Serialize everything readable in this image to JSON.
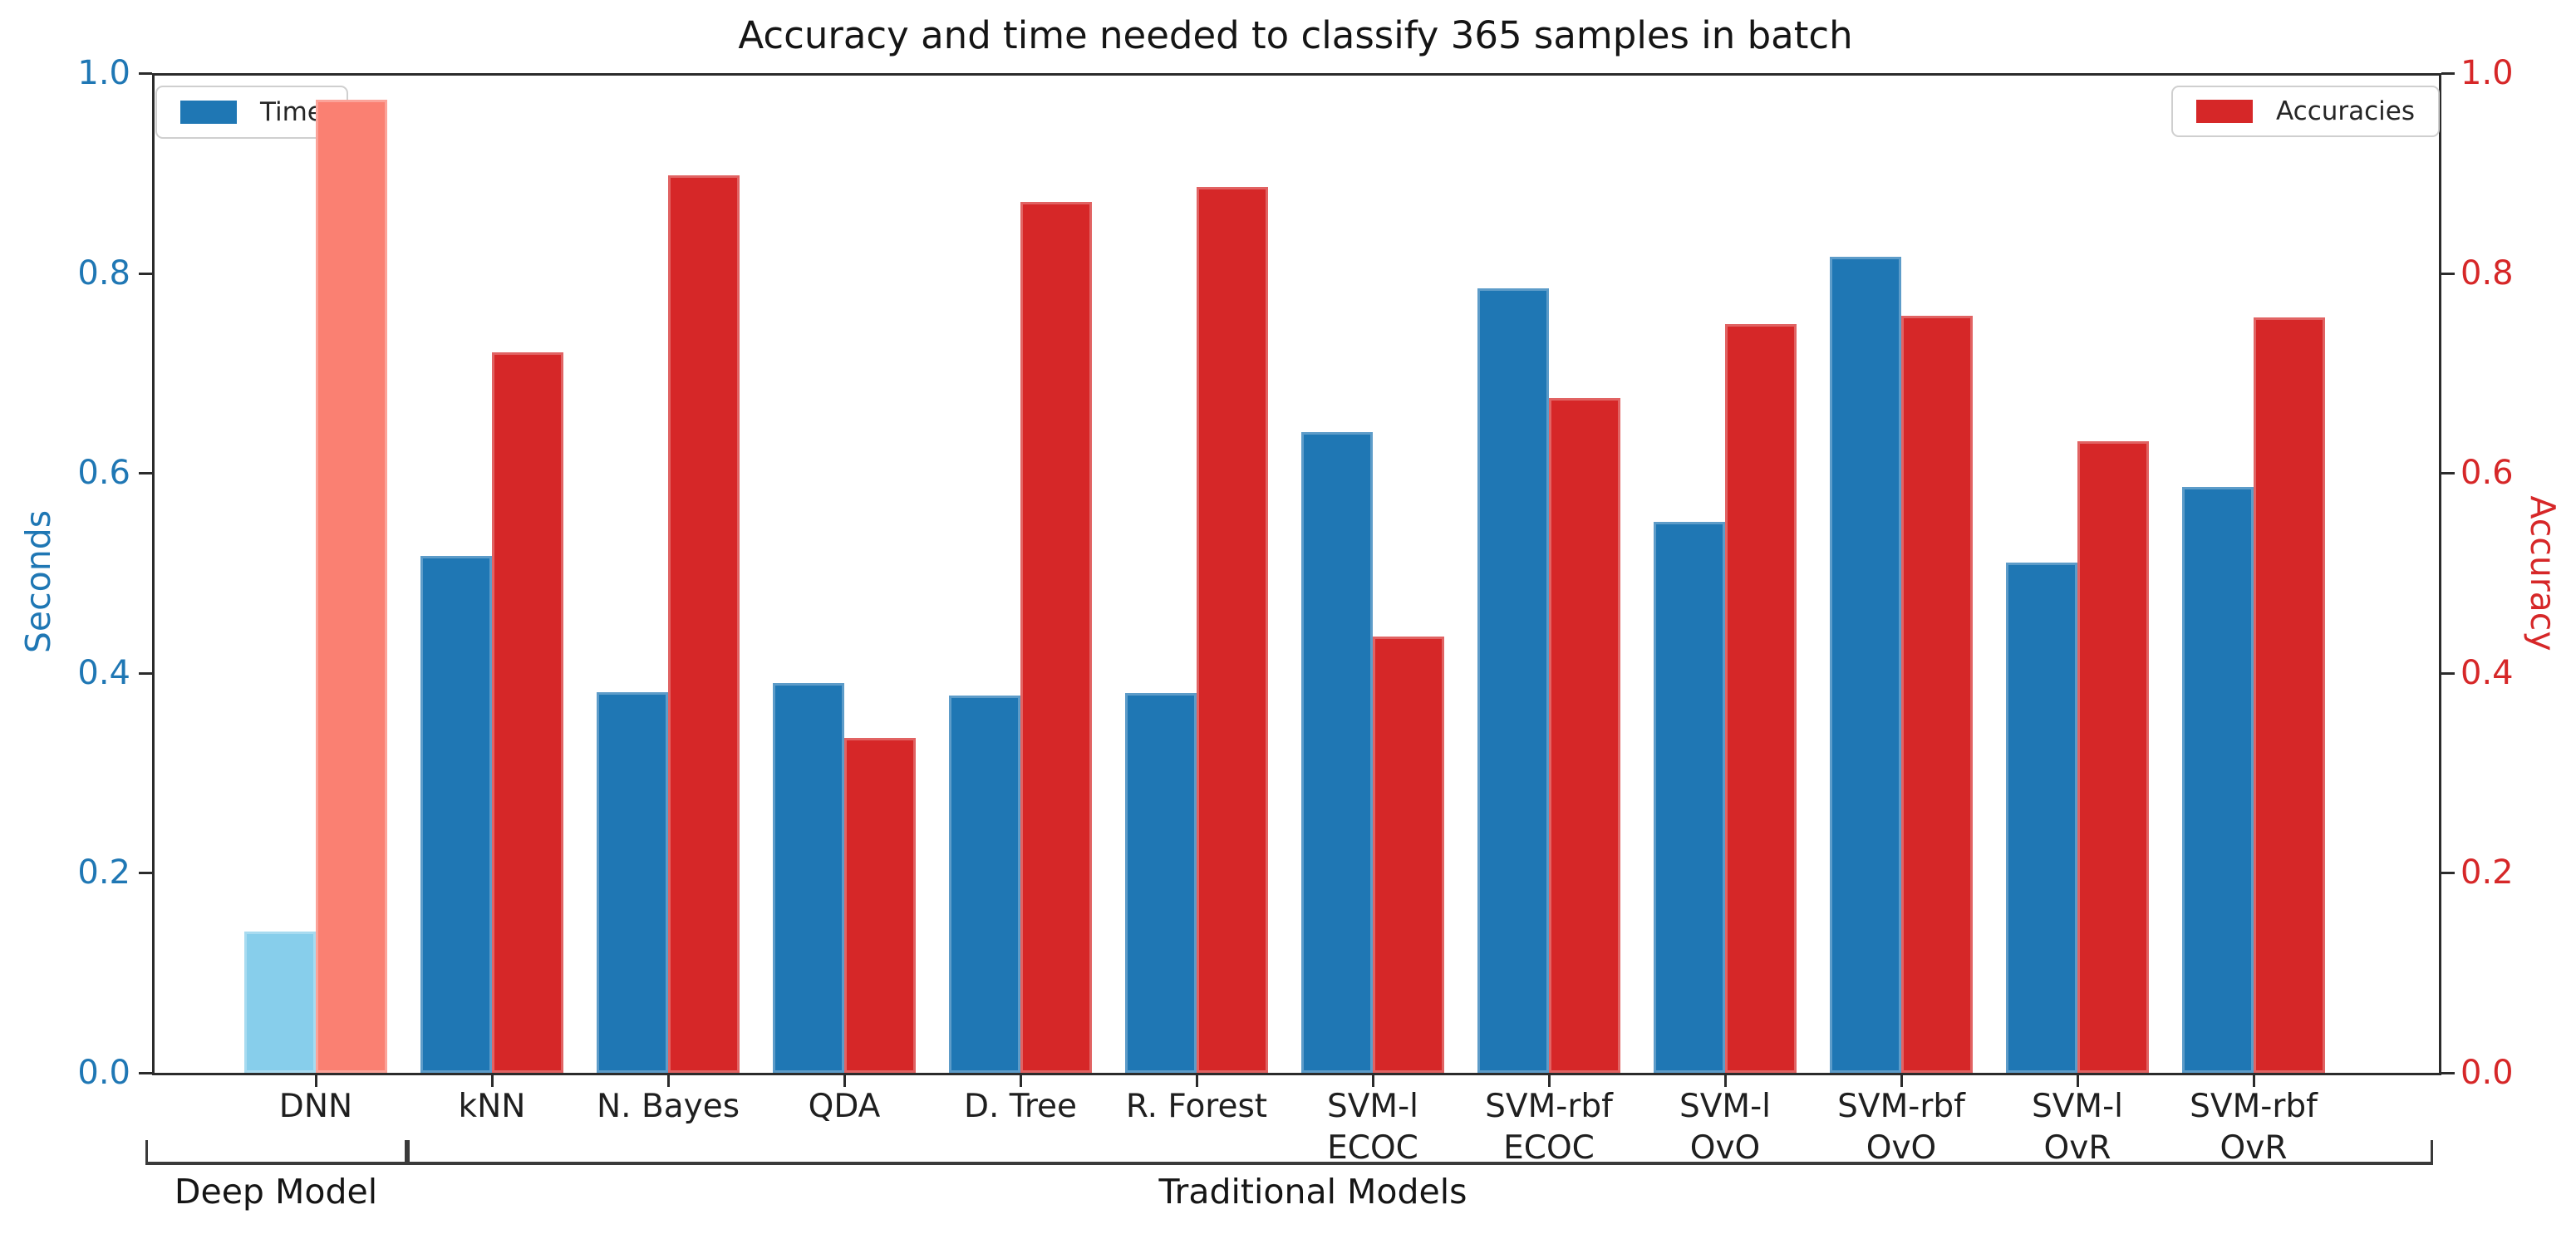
{
  "figure": {
    "title": "Accuracy and time needed to classify 365 samples in batch",
    "background": "#ffffff",
    "spine_color": "#2b2b2b"
  },
  "legends": [
    {
      "label": "Time",
      "swatch_color": "#1f77b4",
      "position": "upper left"
    },
    {
      "label": "Accuracies",
      "swatch_color": "#d62728",
      "position": "upper right"
    }
  ],
  "axes": {
    "left": {
      "label": "Seconds",
      "color": "#1f77b4",
      "tick_values": [
        0,
        0.2,
        0.4,
        0.6,
        0.8,
        1.0
      ],
      "tick_labels": [
        "0.0",
        "0.2",
        "0.4",
        "0.6",
        "0.8",
        "1.0"
      ]
    },
    "right": {
      "label": "Accuracy",
      "color": "#d62728",
      "tick_values": [
        0,
        0.2,
        0.4,
        0.6,
        0.8,
        1.0
      ],
      "tick_labels": [
        "0.0",
        "0.2",
        "0.4",
        "0.6",
        "0.8",
        "1.0"
      ]
    }
  },
  "chart_data": {
    "type": "bar",
    "title": "Accuracy and time needed to classify 365 samples in batch",
    "categories": [
      [
        "DNN"
      ],
      [
        "kNN"
      ],
      [
        "N. Bayes"
      ],
      [
        "QDA"
      ],
      [
        "D. Tree"
      ],
      [
        "R. Forest"
      ],
      [
        "SVM-l",
        "ECOC"
      ],
      [
        "SVM-rbf",
        "ECOC"
      ],
      [
        "SVM-l",
        "OvO"
      ],
      [
        "SVM-rbf",
        "OvO"
      ],
      [
        "SVM-l",
        "OvR"
      ],
      [
        "SVM-rbf",
        "OvR"
      ]
    ],
    "series": [
      {
        "name": "Time",
        "axis": "left",
        "axis_label": "Seconds",
        "color": "#1f77b4",
        "per_bar_colors": {
          "0": "#87ceeb"
        },
        "values": [
          0.141,
          0.517,
          0.381,
          0.39,
          0.377,
          0.38,
          0.641,
          0.785,
          0.551,
          0.816,
          0.51,
          0.586
        ]
      },
      {
        "name": "Accuracies",
        "axis": "right",
        "axis_label": "Accuracy",
        "color": "#d62728",
        "per_bar_colors": {
          "0": "#fa8072"
        },
        "values": [
          0.973,
          0.721,
          0.898,
          0.335,
          0.871,
          0.886,
          0.436,
          0.675,
          0.749,
          0.757,
          0.632,
          0.756
        ]
      }
    ],
    "ylim": [
      0,
      1
    ],
    "grid": false,
    "legend_position": [
      "upper left",
      "upper right"
    ],
    "group_annotations": [
      {
        "label": "Deep Model",
        "category_span": [
          0,
          0
        ]
      },
      {
        "label": "Traditional Models",
        "category_span": [
          1,
          11
        ]
      }
    ]
  }
}
